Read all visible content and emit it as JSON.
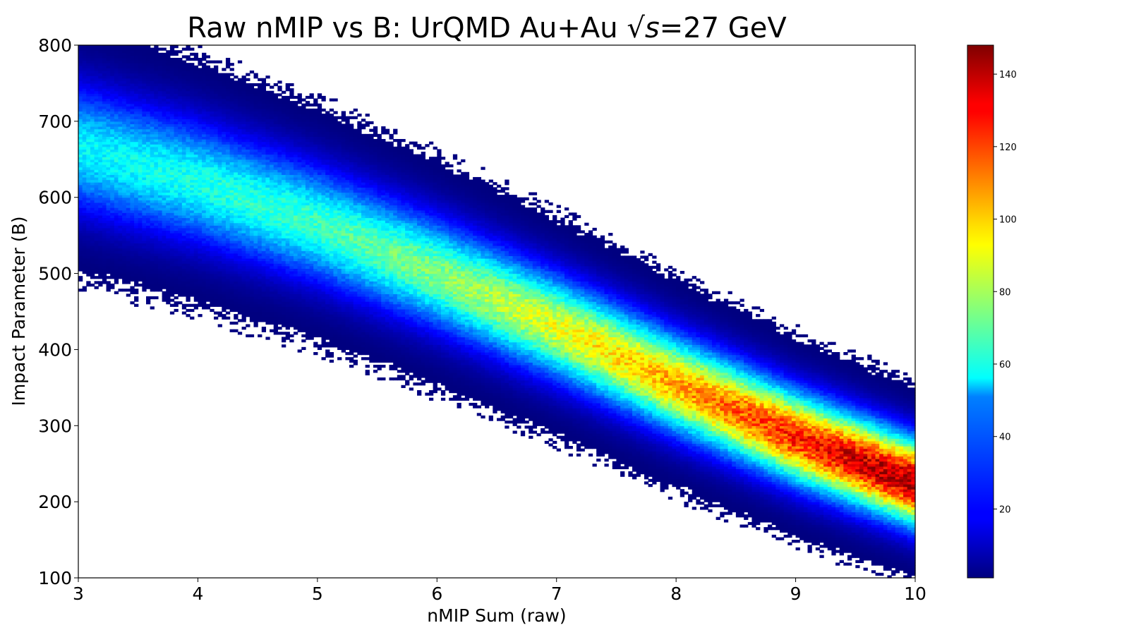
{
  "chart_data": {
    "type": "heatmap",
    "title_main": "Raw nMIP vs B: UrQMD Au+Au ",
    "title_sqrt": "√",
    "title_s": "s",
    "title_tail": "=27 GeV",
    "xlabel": "nMIP Sum (raw)",
    "ylabel": "Impact Parameter (B)",
    "xlim": [
      3,
      10
    ],
    "ylim": [
      100,
      800
    ],
    "x_ticks": [
      3,
      4,
      5,
      6,
      7,
      8,
      9,
      10
    ],
    "y_ticks": [
      100,
      200,
      300,
      400,
      500,
      600,
      700,
      800
    ],
    "colorbar": {
      "colormap": "jet",
      "range": [
        1,
        148
      ],
      "ticks": [
        20,
        40,
        60,
        80,
        100,
        120,
        140
      ]
    },
    "ridge": {
      "center_b": [
        [
          3,
          665
        ],
        [
          4,
          620
        ],
        [
          5,
          565
        ],
        [
          6,
          500
        ],
        [
          7,
          430
        ],
        [
          8,
          355
        ],
        [
          9,
          285
        ],
        [
          10,
          225
        ]
      ],
      "peak_counts": [
        [
          3,
          55
        ],
        [
          4,
          60
        ],
        [
          5,
          65
        ],
        [
          6,
          75
        ],
        [
          7,
          90
        ],
        [
          8,
          105
        ],
        [
          9,
          125
        ],
        [
          10,
          145
        ]
      ],
      "width_b": [
        [
          3,
          55
        ],
        [
          10,
          38
        ]
      ]
    }
  }
}
